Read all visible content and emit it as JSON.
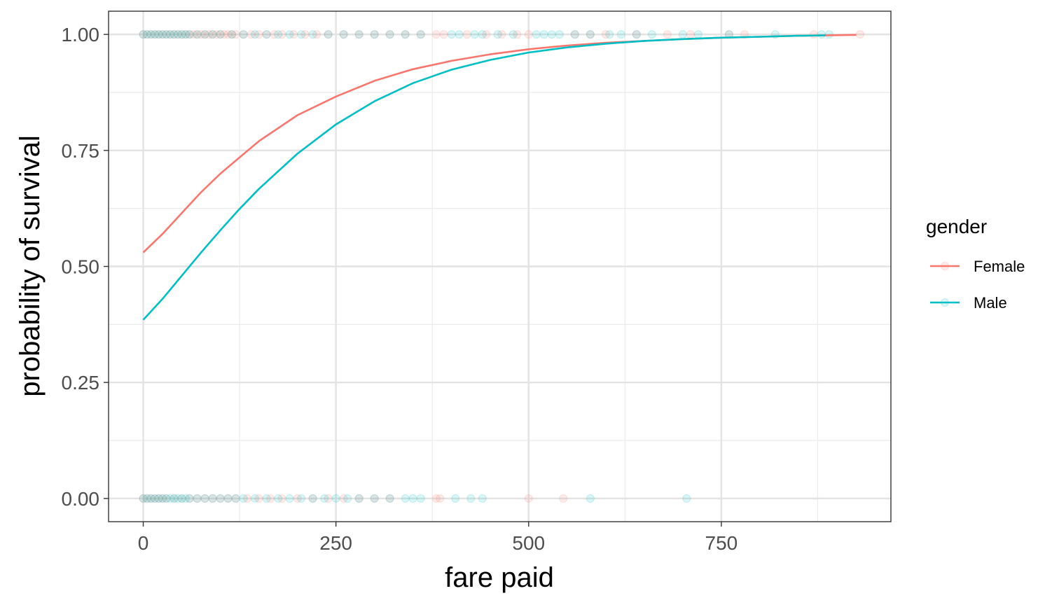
{
  "chart_data": {
    "type": "scatter",
    "xlabel": "fare paid",
    "ylabel": "probability of survival",
    "xlim": [
      -45,
      970
    ],
    "ylim": [
      -0.05,
      1.05
    ],
    "x_ticks": [
      0,
      250,
      500,
      750
    ],
    "x_tick_labels": [
      "0",
      "250",
      "500",
      "750"
    ],
    "y_ticks": [
      0,
      0.25,
      0.5,
      0.75,
      1
    ],
    "y_tick_labels": [
      "0.00",
      "0.25",
      "0.50",
      "0.75",
      "1.00"
    ],
    "grid": true,
    "legend": {
      "title": "gender",
      "position": "right"
    },
    "series": [
      {
        "name": "Female",
        "color": "#F8766D",
        "curve": {
          "x": [
            0,
            25,
            50,
            75,
            100,
            125,
            150,
            200,
            250,
            300,
            350,
            400,
            450,
            500,
            550,
            600,
            650,
            700,
            750,
            800,
            850,
            925
          ],
          "y": [
            0.53,
            0.57,
            0.615,
            0.66,
            0.7,
            0.735,
            0.77,
            0.826,
            0.866,
            0.9,
            0.925,
            0.943,
            0.957,
            0.968,
            0.976,
            0.982,
            0.986,
            0.99,
            0.993,
            0.995,
            0.997,
            0.999
          ]
        },
        "points_survived": [
          0,
          5,
          10,
          15,
          20,
          25,
          30,
          35,
          40,
          45,
          50,
          55,
          60,
          65,
          70,
          75,
          80,
          85,
          90,
          95,
          100,
          105,
          110,
          115,
          120,
          130,
          140,
          150,
          160,
          170,
          180,
          195,
          210,
          225,
          240,
          260,
          280,
          300,
          320,
          340,
          360,
          380,
          390,
          420,
          445,
          465,
          485,
          500,
          560,
          580,
          600,
          640,
          680,
          710,
          760,
          780,
          870,
          930
        ],
        "points_died": [
          0,
          5,
          10,
          15,
          20,
          25,
          30,
          40,
          50,
          60,
          70,
          80,
          90,
          100,
          110,
          120,
          135,
          150,
          165,
          180,
          200,
          220,
          240,
          260,
          280,
          300,
          320,
          380,
          385,
          500,
          545
        ]
      },
      {
        "name": "Male",
        "color": "#00BFC4",
        "curve": {
          "x": [
            0,
            25,
            50,
            75,
            100,
            125,
            150,
            200,
            250,
            300,
            350,
            400,
            450,
            500,
            550,
            600,
            650,
            700,
            750,
            800,
            850,
            885
          ],
          "y": [
            0.385,
            0.43,
            0.48,
            0.53,
            0.578,
            0.624,
            0.667,
            0.743,
            0.806,
            0.856,
            0.895,
            0.924,
            0.945,
            0.961,
            0.972,
            0.98,
            0.986,
            0.99,
            0.993,
            0.995,
            0.997,
            0.998
          ]
        },
        "points_survived": [
          0,
          5,
          10,
          15,
          20,
          25,
          30,
          35,
          40,
          45,
          50,
          55,
          60,
          70,
          80,
          90,
          100,
          115,
          130,
          145,
          160,
          175,
          190,
          205,
          220,
          240,
          260,
          280,
          300,
          320,
          340,
          360,
          400,
          410,
          430,
          440,
          460,
          480,
          510,
          520,
          530,
          540,
          560,
          580,
          605,
          620,
          640,
          660,
          700,
          720,
          760,
          820,
          880,
          890
        ],
        "points_died": [
          0,
          5,
          10,
          15,
          20,
          25,
          30,
          35,
          40,
          45,
          50,
          55,
          60,
          70,
          80,
          90,
          100,
          110,
          120,
          130,
          145,
          160,
          175,
          190,
          205,
          220,
          235,
          250,
          265,
          280,
          300,
          320,
          340,
          350,
          360,
          405,
          425,
          440,
          580,
          705
        ]
      }
    ]
  }
}
